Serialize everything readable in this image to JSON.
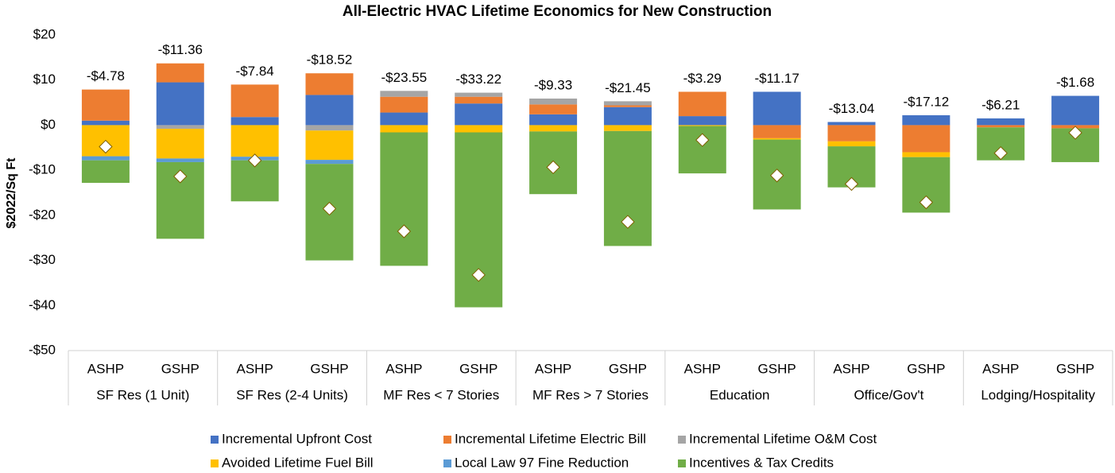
{
  "chart_data": {
    "type": "stacked_bar",
    "title": "All-Electric HVAC Lifetime Economics for New Construction",
    "y_label": "$2022/Sq Ft",
    "categories": [
      "ASHP",
      "GSHP",
      "ASHP",
      "GSHP",
      "ASHP",
      "GSHP",
      "ASHP",
      "GSHP",
      "ASHP",
      "GSHP",
      "ASHP",
      "GSHP",
      "ASHP",
      "GSHP"
    ],
    "groups": [
      "SF Res (1 Unit)",
      "SF Res (2-4 Units)",
      "MF Res < 7 Stories",
      "MF Res > 7 Stories",
      "Education",
      "Office/Gov't",
      "Lodging/Hospitality"
    ],
    "ylim": [
      -50,
      20
    ],
    "yticks": [
      {
        "value": 20,
        "label": "$20"
      },
      {
        "value": 10,
        "label": "$10"
      },
      {
        "value": 0,
        "label": "$0"
      },
      {
        "value": -10,
        "label": "-$10"
      },
      {
        "value": -20,
        "label": "-$20"
      },
      {
        "value": -30,
        "label": "-$30"
      },
      {
        "value": -40,
        "label": "-$40"
      },
      {
        "value": -50,
        "label": "-$50"
      }
    ],
    "grid": false,
    "legend": "bottom",
    "series": [
      {
        "name": "Incremental Upfront Cost",
        "color": "#4472c4",
        "values": [
          1.0,
          9.5,
          1.8,
          6.7,
          2.8,
          4.8,
          2.4,
          4.0,
          2.0,
          7.4,
          0.7,
          2.2,
          1.5,
          6.5
        ]
      },
      {
        "name": "Incremental Lifetime Electric Bill",
        "color": "#ed7d31",
        "values": [
          6.9,
          4.2,
          7.2,
          4.8,
          3.5,
          1.5,
          2.2,
          0.4,
          5.4,
          -2.9,
          -3.6,
          -6.0,
          -0.5,
          -0.7
        ]
      },
      {
        "name": "Incremental Lifetime O&M Cost",
        "color": "#a5a5a5",
        "values": [
          0,
          -0.8,
          0,
          -1.2,
          1.3,
          0.9,
          1.3,
          0.9,
          0,
          0,
          0,
          0,
          0,
          0
        ]
      },
      {
        "name": "Avoided Lifetime Fuel Bill",
        "color": "#ffc000",
        "values": [
          -6.9,
          -6.6,
          -7.0,
          -6.5,
          -1.6,
          -1.6,
          -1.4,
          -1.3,
          -0.2,
          -0.3,
          -1.1,
          -1.1,
          0,
          0
        ]
      },
      {
        "name": "Local Law 97 Fine Reduction",
        "color": "#5b9bd5",
        "values": [
          -0.9,
          -0.8,
          -0.8,
          -0.9,
          0,
          0,
          0,
          0,
          0,
          0,
          0,
          0,
          0,
          0
        ]
      },
      {
        "name": "Incentives & Tax Credits",
        "color": "#70ad47",
        "values": [
          -5.0,
          -17.0,
          -9.1,
          -21.4,
          -29.6,
          -38.8,
          -13.9,
          -25.5,
          -10.5,
          -15.5,
          -9.1,
          -12.3,
          -7.3,
          -7.5
        ]
      }
    ],
    "net": {
      "values": [
        -4.78,
        -11.36,
        -7.84,
        -18.52,
        -23.55,
        -33.22,
        -9.33,
        -21.45,
        -3.29,
        -11.17,
        -13.04,
        -17.12,
        -6.21,
        -1.68
      ],
      "value_labels": [
        "-$4.78",
        "-$11.36",
        "-$7.84",
        "-$18.52",
        "-$23.55",
        "-$33.22",
        "-$9.33",
        "-$21.45",
        "-$3.29",
        "-$11.17",
        "-$13.04",
        "-$17.12",
        "-$6.21",
        "-$1.68"
      ]
    }
  }
}
